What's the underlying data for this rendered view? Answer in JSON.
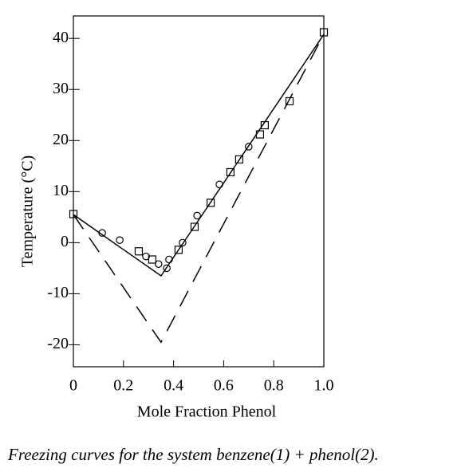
{
  "chart_data": {
    "type": "scatter",
    "caption": "Freezing curves for the system benzene(1) + phenol(2).",
    "xlabel": "Mole Fraction Phenol",
    "ylabel": "Temperature (°C)",
    "xlim": [
      0,
      1
    ],
    "ylim": [
      -24.3,
      44.4
    ],
    "xticks": [
      0,
      0.2,
      0.4,
      0.6,
      0.8,
      {
        "value": 1,
        "label": "1.0"
      }
    ],
    "yticks": [
      40,
      30,
      20,
      10,
      0,
      -10,
      -20
    ],
    "series": [
      {
        "type": "line",
        "dash": false,
        "color": "#000",
        "x": [
          0,
          0.35,
          1
        ],
        "values": [
          5.5,
          -6.5,
          40.8
        ]
      },
      {
        "type": "line",
        "dash": true,
        "color": "#000",
        "x": [
          0,
          0.35,
          1
        ],
        "values": [
          5.5,
          -19.5,
          40.8
        ]
      },
      {
        "type": "scatter",
        "marker": "circle",
        "color": "#000",
        "x": [
          0.115,
          0.185,
          0.29,
          0.34,
          0.373,
          0.382,
          0.436,
          0.494,
          0.583,
          0.7
        ],
        "values": [
          1.9,
          0.5,
          -2.7,
          -4.2,
          -5.0,
          -3.3,
          0,
          5.3,
          11.4,
          18.8
        ]
      },
      {
        "type": "scatter",
        "marker": "square",
        "color": "#000",
        "x": [
          0,
          0.261,
          0.315,
          0.42,
          0.484,
          0.548,
          0.627,
          0.662,
          0.745,
          0.764,
          0.863,
          1.0
        ],
        "values": [
          5.6,
          -1.7,
          -3.3,
          -1.4,
          3.1,
          7.8,
          13.8,
          16.3,
          21.2,
          23.0,
          27.7,
          41.2
        ]
      }
    ]
  }
}
